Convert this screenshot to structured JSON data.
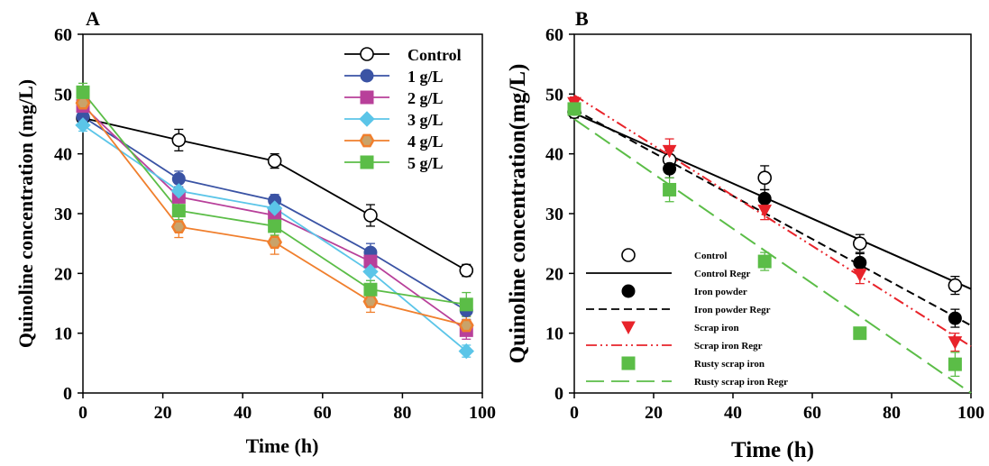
{
  "chart_data": [
    {
      "type": "line",
      "panel_label": "A",
      "xlabel": "Time (h)",
      "ylabel": "Quinoline concentration (mg/L)",
      "xlim": [
        0,
        100
      ],
      "ylim": [
        0,
        60
      ],
      "xticks": [
        0,
        20,
        40,
        60,
        80,
        100
      ],
      "yticks": [
        0,
        10,
        20,
        30,
        40,
        50,
        60
      ],
      "x": [
        0,
        24,
        48,
        72,
        96
      ],
      "grid": false,
      "legend_position": "top-right",
      "series": [
        {
          "name": "Control",
          "values": [
            46.0,
            42.3,
            38.8,
            29.7,
            20.5
          ],
          "errors": [
            1.0,
            1.8,
            1.2,
            1.8,
            1.0
          ],
          "color": "#000000",
          "marker": "open-circle"
        },
        {
          "name": "1 g/L",
          "values": [
            46.2,
            35.8,
            32.2,
            23.5,
            13.8
          ],
          "errors": [
            1.0,
            1.3,
            1.0,
            1.5,
            1.5
          ],
          "color": "#3a53a4",
          "marker": "circle"
        },
        {
          "name": "2 g/L",
          "values": [
            48.0,
            32.8,
            29.7,
            22.0,
            10.5
          ],
          "errors": [
            1.0,
            1.3,
            1.2,
            1.5,
            1.5
          ],
          "color": "#b8409a",
          "marker": "square"
        },
        {
          "name": "3 g/L",
          "values": [
            44.8,
            33.8,
            30.9,
            20.3,
            7.0
          ],
          "errors": [
            1.0,
            1.2,
            1.2,
            1.5,
            1.0
          ],
          "color": "#5bc5e8",
          "marker": "diamond"
        },
        {
          "name": "4 g/L",
          "values": [
            48.5,
            27.8,
            25.2,
            15.3,
            11.3
          ],
          "errors": [
            1.0,
            1.8,
            2.0,
            1.8,
            1.5
          ],
          "color": "#f07f2d",
          "marker": "hexagon"
        },
        {
          "name": "5 g/L",
          "values": [
            50.3,
            30.5,
            27.9,
            17.3,
            14.8
          ],
          "errors": [
            1.5,
            1.5,
            1.5,
            1.5,
            2.0
          ],
          "color": "#5bbd47",
          "marker": "square"
        }
      ]
    },
    {
      "type": "scatter",
      "panel_label": "B",
      "xlabel": "Time (h)",
      "ylabel": "Quinoline concentration(mg/L)",
      "xlim": [
        0,
        100
      ],
      "ylim": [
        0,
        60
      ],
      "xticks": [
        0,
        20,
        40,
        60,
        80,
        100
      ],
      "yticks": [
        0,
        10,
        20,
        30,
        40,
        50,
        60
      ],
      "x": [
        0,
        24,
        48,
        72,
        96
      ],
      "grid": false,
      "legend_position": "bottom-left",
      "series": [
        {
          "name": "Control",
          "regression_name": "Control Regr",
          "values": [
            47.0,
            39.0,
            36.0,
            25.0,
            18.0
          ],
          "errors": [
            1.0,
            1.5,
            2.0,
            1.5,
            1.5
          ],
          "regression": [
            46.8,
            17.4
          ],
          "color": "#000000",
          "marker": "open-circle",
          "dash": ""
        },
        {
          "name": "Iron powder",
          "regression_name": "Iron powder Regr",
          "values": [
            47.5,
            37.5,
            32.5,
            21.8,
            12.5
          ],
          "errors": [
            1.0,
            1.5,
            1.5,
            1.5,
            1.5
          ],
          "regression": [
            47.4,
            11.3
          ],
          "color": "#000000",
          "marker": "filled-circle",
          "dash": "9,5"
        },
        {
          "name": "Scrap iron",
          "regression_name": "Scrap iron Regr",
          "values": [
            48.5,
            40.5,
            30.5,
            19.8,
            8.5
          ],
          "errors": [
            1.0,
            2.0,
            1.5,
            1.5,
            1.5
          ],
          "regression": [
            49.8,
            7.8
          ],
          "color": "#e8232a",
          "marker": "down-triangle",
          "dash": "12,4,2,4,2,4"
        },
        {
          "name": "Rusty scrap iron",
          "regression_name": "Rusty scrap iron Regr",
          "values": [
            47.5,
            34.0,
            22.0,
            10.0,
            4.8
          ],
          "errors": [
            1.0,
            2.0,
            1.5,
            0.0,
            2.0
          ],
          "regression": [
            45.8,
            0.0
          ],
          "color": "#5bbd47",
          "marker": "square",
          "dash": "20,8"
        }
      ]
    }
  ]
}
